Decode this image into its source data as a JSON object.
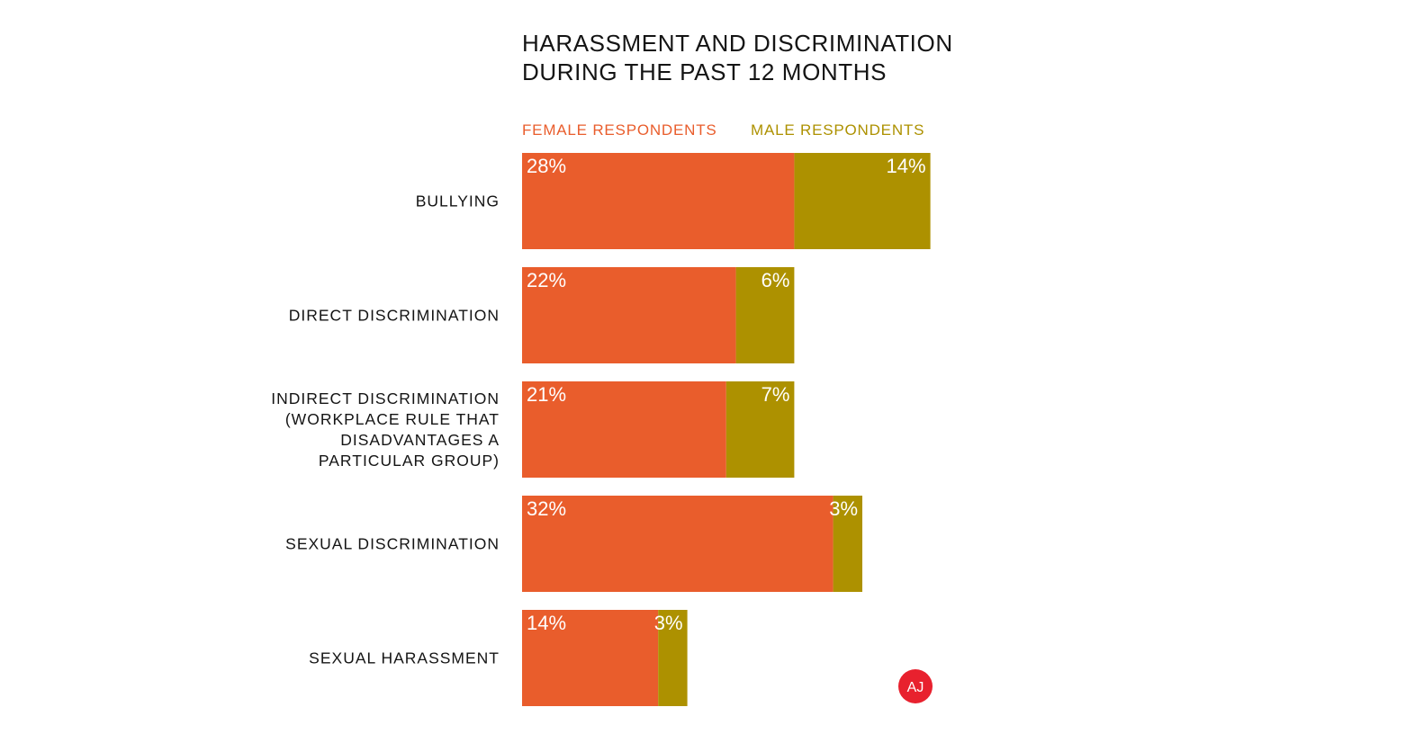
{
  "chart_data": {
    "type": "bar",
    "stacked": true,
    "orientation": "horizontal",
    "title": "HARASSMENT AND DISCRIMINATION DURING THE PAST 12 MONTHS",
    "title_lines": [
      "HARASSMENT AND DISCRIMINATION",
      "DURING THE PAST 12 MONTHS"
    ],
    "categories": [
      [
        "BULLYING"
      ],
      [
        "DIRECT DISCRIMINATION"
      ],
      [
        "INDIRECT DISCRIMINATION",
        "(WORKPLACE RULE THAT",
        "DISADVANTAGES A",
        "PARTICULAR GROUP)"
      ],
      [
        "SEXUAL DISCRIMINATION"
      ],
      [
        "SEXUAL HARASSMENT"
      ]
    ],
    "series": [
      {
        "name": "FEMALE RESPONDENTS",
        "color": "#e95d2c",
        "values": [
          28,
          22,
          21,
          32,
          14
        ]
      },
      {
        "name": "MALE RESPONDENTS",
        "color": "#ad9100",
        "values": [
          14,
          6,
          7,
          3,
          3
        ]
      }
    ],
    "value_suffix": "%",
    "logo": {
      "text": "AJ",
      "color": "#e8212e"
    }
  }
}
